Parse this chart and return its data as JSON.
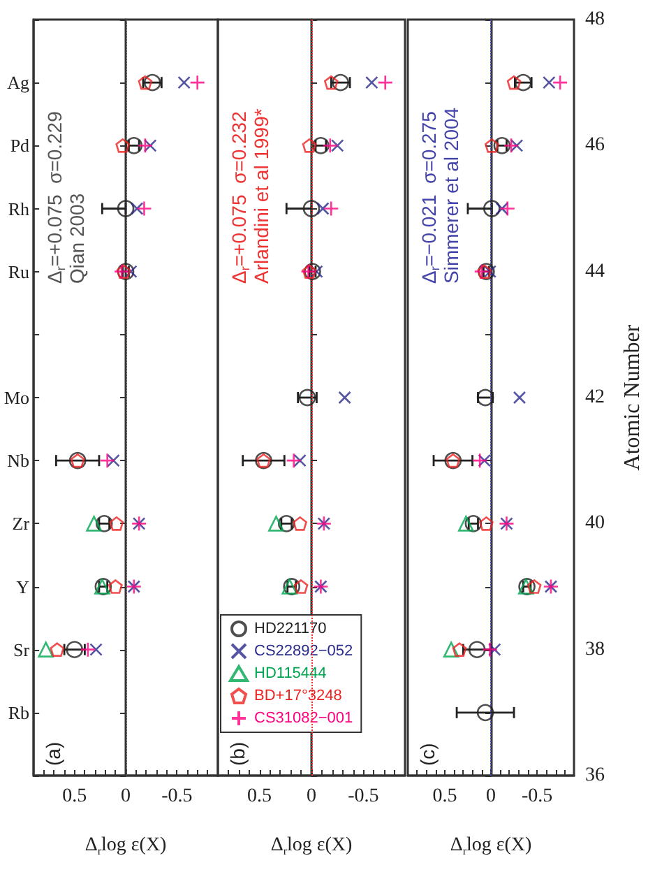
{
  "chart_data": [
    {
      "type": "scatter",
      "xlabel": "Δ$_{r}$log ε(X)",
      "annotations": [
        "(a)",
        "Δ$_{r}$=+0.075  σ=0.229",
        "Qian 2003"
      ],
      "y2_categories": [
        null,
        "Ag",
        "Pd",
        "Rh",
        "Ru",
        null,
        "Mo",
        "Nb",
        "Zr",
        "Y",
        "Sr",
        "Rb",
        null
      ],
      "xlim": [
        0.9,
        -0.9
      ],
      "xticks": [
        {
          "value": -0.8,
          "label": null
        },
        {
          "value": -0.7,
          "label": null
        },
        {
          "value": -0.6,
          "label": null
        },
        -0.5,
        {
          "value": -0.4,
          "label": null
        },
        {
          "value": -0.3,
          "label": null
        },
        {
          "value": -0.2,
          "label": null
        },
        {
          "value": -0.1,
          "label": null
        },
        0,
        {
          "value": 0.1,
          "label": null
        },
        {
          "value": 0.2,
          "label": null
        },
        {
          "value": 0.3,
          "label": null
        },
        {
          "value": 0.4,
          "label": null
        },
        0.5,
        {
          "value": 0.6,
          "label": null
        },
        {
          "value": 0.7,
          "label": null
        },
        {
          "value": 0.8,
          "label": null
        }
      ],
      "ylim": [
        36,
        48
      ],
      "yticks": [
        36,
        37,
        38,
        39,
        40,
        41,
        42,
        43,
        44,
        45,
        46,
        47,
        48
      ],
      "tick_labels": "x",
      "grid": false,
      "legend": false,
      "ref_lines": [
        {
          "axis": "x",
          "value": 0,
          "color": "#555555",
          "line_style": "dotted"
        }
      ],
      "series": [
        {
          "color": "#222222",
          "marker": "circle",
          "x": [
            0.5,
            0.22,
            0.21,
            0.47,
            0.0,
            0.0,
            -0.08,
            -0.26
          ],
          "values": [
            38,
            39,
            40,
            41,
            44,
            45,
            46,
            47
          ],
          "xerrors": [
            0.1,
            0.04,
            0.05,
            0.21,
            0.03,
            [
              0.0,
              0.23
            ],
            0.05,
            0.09
          ]
        },
        {
          "color": "#2b2b8c",
          "marker": "cross",
          "x": [
            0.29,
            -0.08,
            -0.13,
            0.12,
            -0.05,
            -0.11,
            -0.24,
            -0.57
          ],
          "values": [
            38,
            39,
            40,
            41,
            44,
            45,
            46,
            47
          ]
        },
        {
          "color": "#00a651",
          "marker": "triangle",
          "x": [
            0.78,
            0.23,
            0.31
          ],
          "values": [
            38,
            39,
            40
          ]
        },
        {
          "color": "#ee2222",
          "x": [
            0.67,
            0.1,
            0.09,
            0.47,
            0.02,
            0.03,
            -0.19
          ],
          "values": [
            38,
            39,
            40,
            41,
            44,
            46,
            47
          ]
        },
        {
          "color": "#ff0080",
          "marker": "plus",
          "x": [
            0.37,
            -0.08,
            -0.13,
            0.18,
            0.04,
            -0.18,
            -0.19,
            -0.7
          ],
          "values": [
            38,
            39,
            40,
            41,
            44,
            45,
            46,
            47
          ]
        }
      ]
    },
    {
      "type": "scatter",
      "xlabel": "Δ$_{r}$log ε(X)",
      "annotations": [
        "(b)",
        "Δ$_{r}$=+0.075  σ=0.232",
        "Arlandini et al 1999*"
      ],
      "xlim": [
        0.9,
        -0.9
      ],
      "xticks": [
        {
          "value": -0.8,
          "label": null
        },
        {
          "value": -0.7,
          "label": null
        },
        {
          "value": -0.6,
          "label": null
        },
        -0.5,
        {
          "value": -0.4,
          "label": null
        },
        {
          "value": -0.3,
          "label": null
        },
        {
          "value": -0.2,
          "label": null
        },
        {
          "value": -0.1,
          "label": null
        },
        0,
        {
          "value": 0.1,
          "label": null
        },
        {
          "value": 0.2,
          "label": null
        },
        {
          "value": 0.3,
          "label": null
        },
        {
          "value": 0.4,
          "label": null
        },
        0.5,
        {
          "value": 0.6,
          "label": null
        },
        {
          "value": 0.7,
          "label": null
        },
        {
          "value": 0.8,
          "label": null
        }
      ],
      "ylim": [
        36,
        48
      ],
      "yticks": [
        36,
        37,
        38,
        39,
        40,
        41,
        42,
        43,
        44,
        45,
        46,
        47,
        48
      ],
      "tick_labels": "x",
      "grid": false,
      "legend": "bottom left",
      "ref_lines": [
        {
          "axis": "x",
          "value": 0,
          "color": "#ee3333",
          "line_style": "dotted"
        }
      ],
      "series": [
        {
          "name": "HD221170",
          "color": "#222222",
          "marker": "circle",
          "x": [
            0.19,
            0.24,
            0.46,
            0.04,
            -0.01,
            0.0,
            -0.09,
            -0.28
          ],
          "values": [
            39,
            40,
            41,
            42,
            44,
            45,
            46,
            47
          ],
          "xerrors": [
            0.04,
            0.05,
            0.2,
            0.09,
            0.03,
            [
              0.0,
              0.24
            ],
            0.05,
            0.09
          ]
        },
        {
          "name": "CS22892−052",
          "color": "#2b2b8c",
          "marker": "cross",
          "x": [
            -0.09,
            -0.12,
            0.11,
            -0.32,
            -0.05,
            -0.11,
            -0.25,
            -0.58
          ],
          "values": [
            39,
            40,
            41,
            42,
            44,
            45,
            46,
            47
          ]
        },
        {
          "name": "HD115444",
          "color": "#00a651",
          "marker": "triangle",
          "x": [
            0.21,
            0.34
          ],
          "values": [
            39,
            40
          ]
        },
        {
          "name": "BD+17°3248",
          "color": "#ee2222",
          "x": [
            0.1,
            0.11,
            0.46,
            0.02,
            0.02,
            -0.19
          ],
          "values": [
            39,
            40,
            41,
            44,
            46,
            47
          ]
        },
        {
          "name": "CS31082−001",
          "color": "#ff0080",
          "marker": "plus",
          "x": [
            -0.09,
            -0.12,
            0.17,
            0.03,
            -0.19,
            -0.18,
            -0.71
          ],
          "values": [
            39,
            40,
            41,
            44,
            45,
            46,
            47
          ]
        }
      ]
    },
    {
      "type": "scatter",
      "xlabel": "Δ$_{r}$log ε(X)",
      "ylabel": "Atomic Number",
      "annotations": [
        "(c)",
        "Δ$_{r}$=−0.021  σ=0.275",
        "Simmerer et al 2004"
      ],
      "xlim": [
        0.9,
        -0.9
      ],
      "xticks": [
        {
          "value": -0.8,
          "label": null
        },
        {
          "value": -0.7,
          "label": null
        },
        {
          "value": -0.6,
          "label": null
        },
        -0.5,
        {
          "value": -0.4,
          "label": null
        },
        {
          "value": -0.3,
          "label": null
        },
        {
          "value": -0.2,
          "label": null
        },
        {
          "value": -0.1,
          "label": null
        },
        0,
        {
          "value": 0.1,
          "label": null
        },
        {
          "value": 0.2,
          "label": null
        },
        {
          "value": 0.3,
          "label": null
        },
        {
          "value": 0.4,
          "label": null
        },
        0.5,
        {
          "value": 0.6,
          "label": null
        },
        {
          "value": 0.7,
          "label": null
        },
        {
          "value": 0.8,
          "label": null
        }
      ],
      "ylim": [
        36,
        48
      ],
      "yticks": [
        36,
        {
          "value": 37,
          "label": null
        },
        38,
        {
          "value": 39,
          "label": null
        },
        40,
        {
          "value": 41,
          "label": null
        },
        42,
        {
          "value": 43,
          "label": null
        },
        44,
        {
          "value": 45,
          "label": null
        },
        46,
        {
          "value": 47,
          "label": null
        },
        48
      ],
      "grid": false,
      "legend": false,
      "ref_lines": [
        {
          "axis": "x",
          "value": 0,
          "color": "#4444aa",
          "line_style": "dotted"
        }
      ],
      "series": [
        {
          "color": "#222222",
          "marker": "circle",
          "x": [
            0.06,
            0.15,
            -0.39,
            0.19,
            0.41,
            0.06,
            0.05,
            -0.01,
            -0.12,
            -0.35
          ],
          "values": [
            37,
            38,
            39,
            40,
            41,
            42,
            44,
            45,
            46,
            47
          ],
          "xerrors": [
            0.31,
            0.15,
            0.04,
            0.05,
            0.21,
            0.08,
            0.03,
            [
              -0.01,
              0.25
            ],
            0.05,
            0.09
          ]
        },
        {
          "color": "#2b2b8c",
          "marker": "cross",
          "x": [
            -0.04,
            -0.65,
            -0.17,
            0.07,
            -0.31,
            0.01,
            -0.12,
            -0.28,
            -0.63
          ],
          "values": [
            38,
            39,
            40,
            41,
            42,
            44,
            45,
            46,
            47
          ]
        },
        {
          "color": "#00a651",
          "marker": "triangle",
          "x": [
            0.43,
            -0.38,
            0.27
          ],
          "values": [
            38,
            39,
            40
          ]
        },
        {
          "color": "#ee2222",
          "x": [
            0.34,
            -0.47,
            0.05,
            0.41,
            0.07,
            -0.01,
            -0.25
          ],
          "values": [
            38,
            39,
            40,
            41,
            44,
            46,
            47
          ]
        },
        {
          "color": "#ff0080",
          "marker": "plus",
          "x": [
            0.01,
            -0.65,
            -0.17,
            0.12,
            0.1,
            -0.18,
            -0.22,
            -0.75
          ],
          "values": [
            38,
            39,
            40,
            41,
            44,
            45,
            46,
            47
          ]
        }
      ]
    }
  ]
}
